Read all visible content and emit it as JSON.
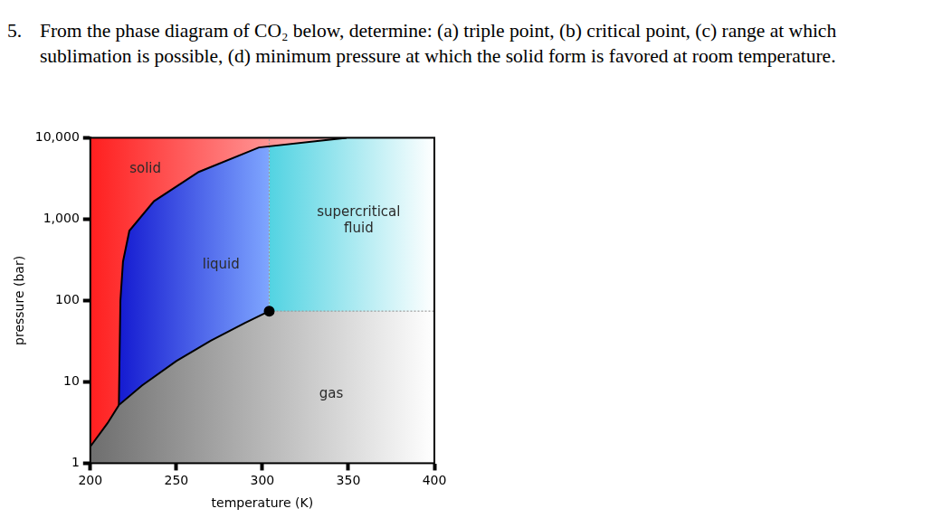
{
  "question": {
    "number": "5.",
    "text": "From the phase diagram of CO₂ below, determine: (a) triple point, (b) critical point, (c) range at which sublimation is possible, (d) minimum pressure at which the solid form is favored at room temperature."
  },
  "chart_data": {
    "type": "line",
    "log": "y",
    "grid": false,
    "xlabel": "temperature (K)",
    "ylabel": "pressure (bar)",
    "xlim": [
      200,
      400
    ],
    "xticks": [
      200,
      250,
      300,
      350,
      400
    ],
    "ylim": [
      1,
      10000
    ],
    "yticks": [
      1,
      10,
      100,
      {
        "value": 1000,
        "label": "1,000"
      },
      {
        "value": 10000,
        "label": "10,000"
      }
    ],
    "series": [
      {
        "name": "solid",
        "type": "fill_above",
        "color": "#ff1f1f",
        "x": [
          200,
          210,
          216.6,
          217,
          217.5,
          219,
          222.7,
          237,
          263,
          298,
          349
        ],
        "values": [
          1.6,
          3.1,
          5.18,
          20,
          100,
          300,
          720,
          1660,
          3800,
          7600,
          10000
        ]
      },
      {
        "name": "gas",
        "type": "fill_below",
        "color": "#6e6e6e",
        "x": [
          200,
          210,
          216.6,
          230,
          250,
          270,
          290,
          304,
          400
        ],
        "values": [
          1.6,
          3.1,
          5.18,
          9,
          18,
          32,
          53,
          74,
          74
        ]
      },
      {
        "type": "line",
        "color": "#000000",
        "line_style": "solid",
        "x": [
          200,
          210,
          216.6,
          230,
          250,
          270,
          290,
          304
        ],
        "values": [
          1.6,
          3.1,
          5.18,
          9,
          18,
          32,
          53,
          74
        ]
      },
      {
        "type": "line",
        "color": "#000000",
        "line_style": "solid",
        "x": [
          216.6,
          217,
          217.5,
          219,
          222.7,
          237,
          263,
          298,
          349
        ],
        "values": [
          5.18,
          20,
          100,
          300,
          720,
          1660,
          3800,
          7600,
          10000
        ]
      },
      {
        "type": "line",
        "color": "#9a9a9a",
        "line_style": "dotted",
        "x": [
          304,
          304
        ],
        "values": [
          74,
          10000
        ]
      },
      {
        "type": "line",
        "color": "#9a9a9a",
        "line_style": "dotted",
        "x": [
          304,
          400
        ],
        "values": [
          74,
          74
        ]
      },
      {
        "type": "scatter",
        "color": "#000000",
        "marker": "circle",
        "x": [
          304
        ],
        "values": [
          74
        ]
      }
    ],
    "annotations": [
      {
        "text": [
          "solid"
        ],
        "x": 232,
        "y": 4100
      },
      {
        "text": [
          "liquid"
        ],
        "x": 276,
        "y": 270
      },
      {
        "text": [
          "supercritical",
          "fluid"
        ],
        "x": 356,
        "y": 950
      },
      {
        "text": [
          "gas"
        ],
        "x": 340,
        "y": 7
      }
    ]
  }
}
